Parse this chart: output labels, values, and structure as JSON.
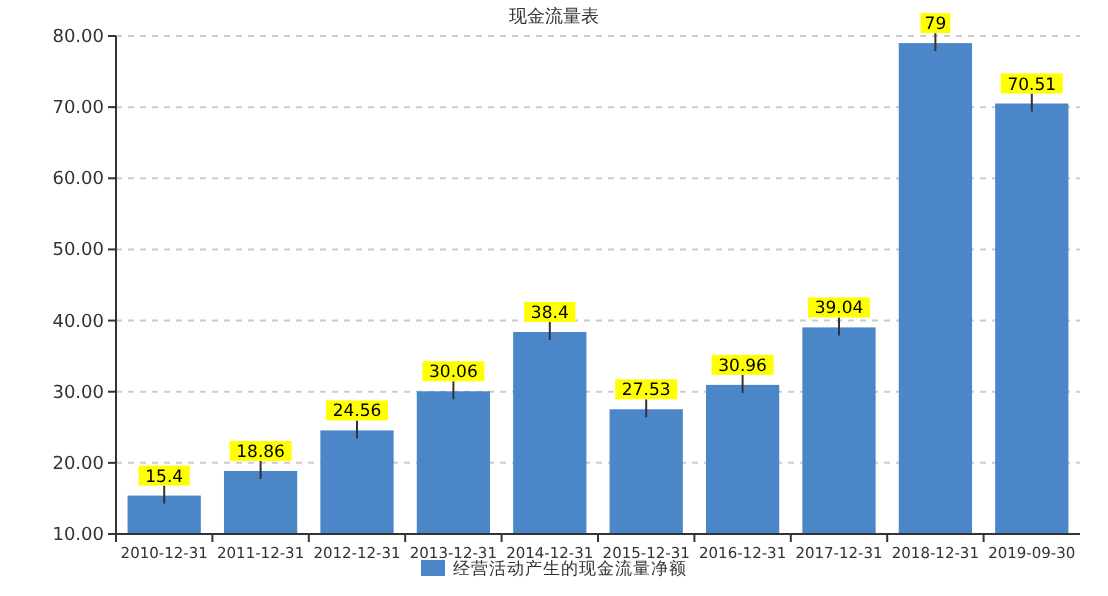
{
  "chart_data": {
    "type": "bar",
    "title": "现金流量表",
    "categories": [
      "2010-12-31",
      "2011-12-31",
      "2012-12-31",
      "2013-12-31",
      "2014-12-31",
      "2015-12-31",
      "2016-12-31",
      "2017-12-31",
      "2018-12-31",
      "2019-09-30"
    ],
    "series": [
      {
        "name": "经营活动产生的现金流量净额",
        "color": "#4a86c8",
        "values": [
          15.4,
          18.86,
          24.56,
          30.06,
          38.4,
          27.53,
          30.96,
          39.04,
          79,
          70.51
        ]
      }
    ],
    "ylim": [
      10,
      80
    ],
    "yticks": [
      {
        "value": 10,
        "label": "10.00"
      },
      {
        "value": 20,
        "label": "20.00"
      },
      {
        "value": 30,
        "label": "30.00"
      },
      {
        "value": 40,
        "label": "40.00"
      },
      {
        "value": 50,
        "label": "50.00"
      },
      {
        "value": 60,
        "label": "60.00"
      },
      {
        "value": 70,
        "label": "70.00"
      },
      {
        "value": 80,
        "label": "80.00"
      }
    ],
    "grid": "y",
    "legend": "bottom",
    "data_labels": true
  }
}
